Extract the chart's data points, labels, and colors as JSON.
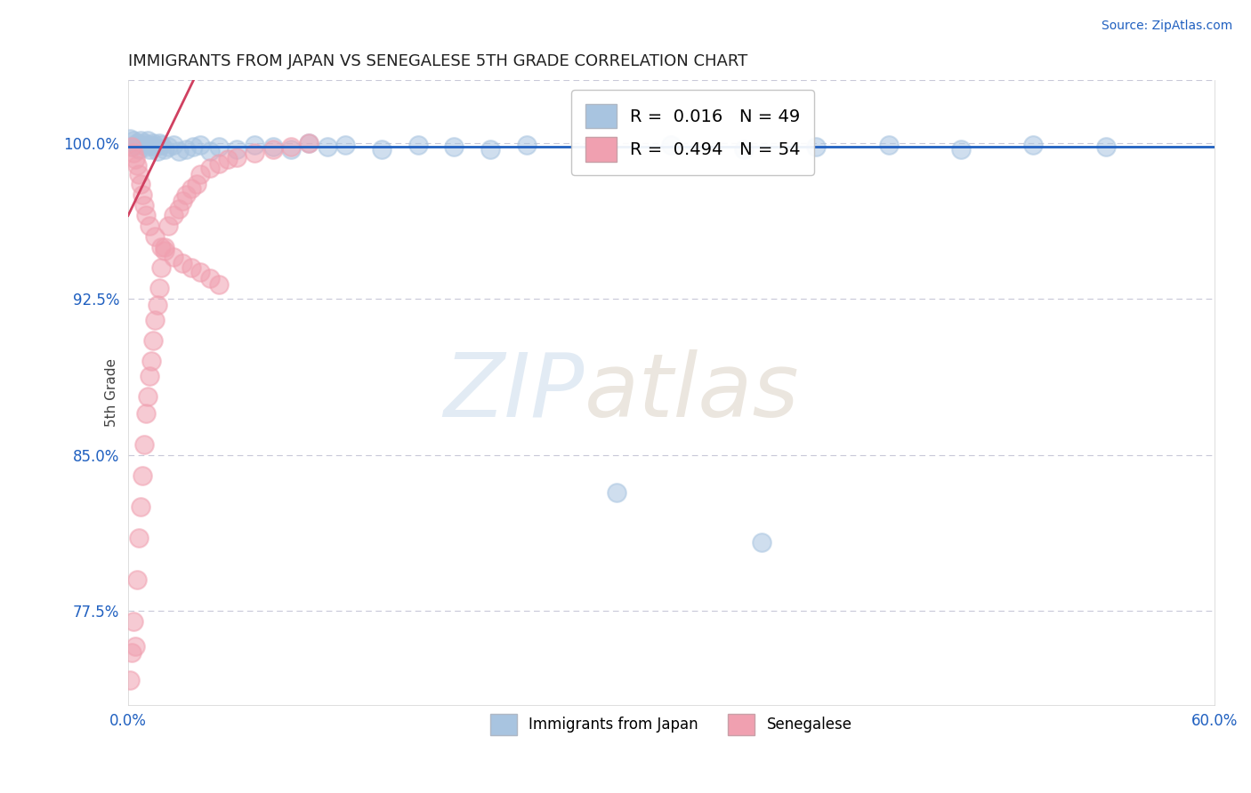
{
  "title": "IMMIGRANTS FROM JAPAN VS SENEGALESE 5TH GRADE CORRELATION CHART",
  "source": "Source: ZipAtlas.com",
  "ylabel": "5th Grade",
  "xlim": [
    0.0,
    0.6
  ],
  "ylim": [
    0.73,
    1.03
  ],
  "yticks": [
    0.775,
    0.85,
    0.925,
    1.0
  ],
  "yticklabels": [
    "77.5%",
    "85.0%",
    "92.5%",
    "100.0%"
  ],
  "blue_R": 0.016,
  "blue_N": 49,
  "pink_R": 0.494,
  "pink_N": 54,
  "blue_color": "#a8c4e0",
  "pink_color": "#f0a0b0",
  "line_color": "#2060c0",
  "pink_line_color": "#d04060",
  "background_color": "#ffffff",
  "grid_color": "#c8c8d8",
  "legend1_label1": "R =  0.016   N = 49",
  "legend1_label2": "R =  0.494   N = 54",
  "legend2_label1": "Immigrants from Japan",
  "legend2_label2": "Senegalese",
  "watermark_zip": "ZIP",
  "watermark_atlas": "atlas"
}
